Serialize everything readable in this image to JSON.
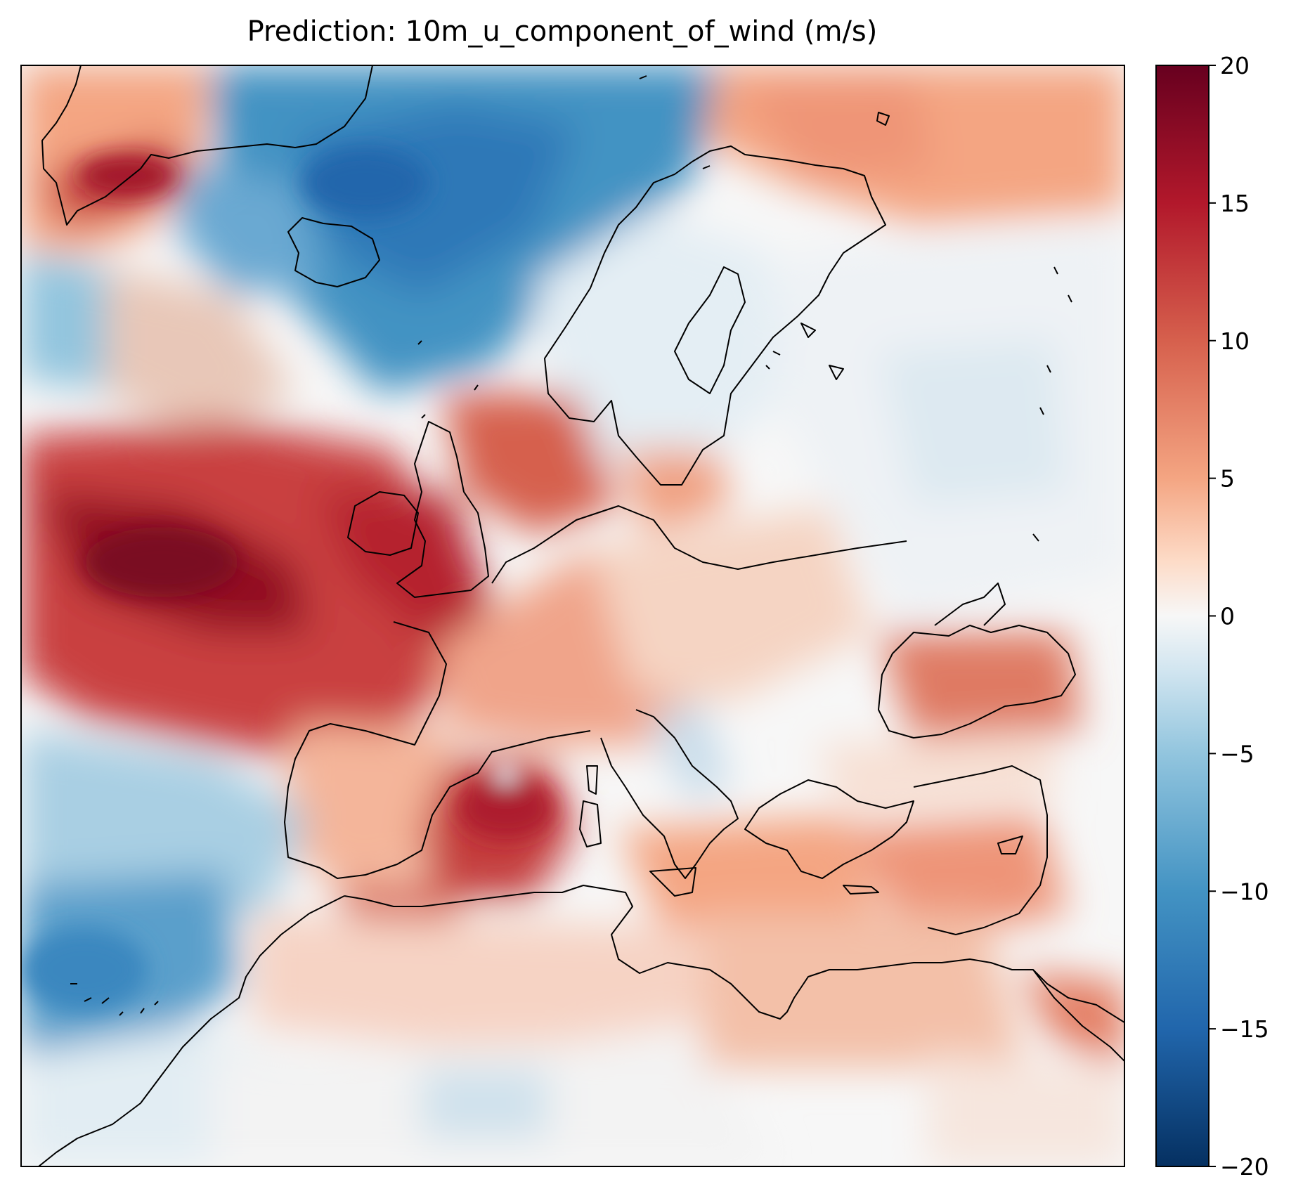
{
  "title": "Prediction: 10m_u_component_of_wind (m/s)",
  "colorbar": {
    "colormap": "RdBu_r",
    "min": -20,
    "max": 20,
    "ticks": [
      {
        "value": 20,
        "label": "20"
      },
      {
        "value": 15,
        "label": "15"
      },
      {
        "value": 10,
        "label": "10"
      },
      {
        "value": 5,
        "label": "5"
      },
      {
        "value": 0,
        "label": "0"
      },
      {
        "value": -5,
        "label": "−5"
      },
      {
        "value": -10,
        "label": "−10"
      },
      {
        "value": -15,
        "label": "−15"
      },
      {
        "value": -20,
        "label": "−20"
      }
    ],
    "stops": [
      {
        "value": -20,
        "color": "#053061"
      },
      {
        "value": -15,
        "color": "#2166ac"
      },
      {
        "value": -10,
        "color": "#4393c3"
      },
      {
        "value": -5,
        "color": "#92c5de"
      },
      {
        "value": -2,
        "color": "#d1e5f0"
      },
      {
        "value": 0,
        "color": "#f7f7f7"
      },
      {
        "value": 2,
        "color": "#fddbc7"
      },
      {
        "value": 5,
        "color": "#f4a582"
      },
      {
        "value": 10,
        "color": "#d6604d"
      },
      {
        "value": 15,
        "color": "#b2182b"
      },
      {
        "value": 20,
        "color": "#67001f"
      }
    ]
  },
  "map": {
    "region": "Europe, North Atlantic and Mediterranean",
    "coastline_color": "#000000",
    "wind_regions": [
      {
        "area": "North Atlantic west of Ireland and France",
        "value": 17
      },
      {
        "area": "Celtic Sea and English Channel",
        "value": 15
      },
      {
        "area": "North Sea",
        "value": 10
      },
      {
        "area": "Greenland southeast coast",
        "value": 14
      },
      {
        "area": "Norwegian Sea",
        "value": -10
      },
      {
        "area": "Greenland Sea",
        "value": -12
      },
      {
        "area": "Iceland surroundings",
        "value": -8
      },
      {
        "area": "Labrador Sea edge",
        "value": -6
      },
      {
        "area": "Barents Sea",
        "value": 6
      },
      {
        "area": "Western Mediterranean / Balearic Sea",
        "value": 13
      },
      {
        "area": "Alboran Sea",
        "value": 10
      },
      {
        "area": "Black Sea",
        "value": 8
      },
      {
        "area": "Eastern Mediterranean",
        "value": 6
      },
      {
        "area": "Red Sea",
        "value": 7
      },
      {
        "area": "Subtropical Atlantic near Canaries",
        "value": -9
      },
      {
        "area": "Azores region",
        "value": -6
      },
      {
        "area": "Eastern Europe / Russia",
        "value": -1
      },
      {
        "area": "Baltic Sea",
        "value": -3
      },
      {
        "area": "Adriatic Sea",
        "value": -5
      },
      {
        "area": "North Africa interior",
        "value": 2
      },
      {
        "area": "Sahara south",
        "value": -2
      }
    ]
  }
}
